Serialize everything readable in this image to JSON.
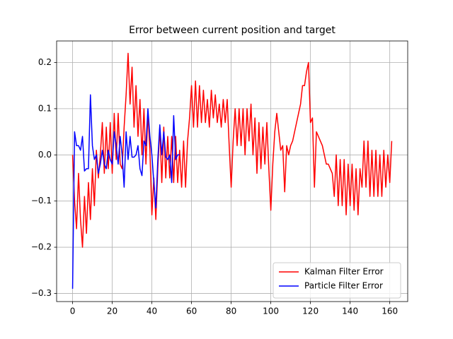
{
  "chart_data": {
    "type": "line",
    "title": "Error between current position and target",
    "xlim": [
      -8.05,
      169.05
    ],
    "ylim": [
      -0.3177,
      0.2467
    ],
    "xticks": [
      0,
      20,
      40,
      60,
      80,
      100,
      120,
      140,
      160
    ],
    "yticks": [
      {
        "value": -0.3,
        "label": "−0.3"
      },
      {
        "value": -0.2,
        "label": "−0.2"
      },
      {
        "value": -0.1,
        "label": "−0.1"
      },
      {
        "value": 0,
        "label": "0.0"
      },
      0.1,
      0.2
    ],
    "grid": true,
    "legend": "lower right",
    "series": [
      {
        "name": "Kalman Filter Error",
        "color": "#ff0000",
        "x": [
          0,
          1,
          2,
          3,
          4,
          5,
          6,
          7,
          8,
          9,
          10,
          11,
          12,
          13,
          14,
          15,
          16,
          17,
          18,
          19,
          20,
          21,
          22,
          23,
          24,
          25,
          26,
          27,
          28,
          29,
          30,
          31,
          32,
          33,
          34,
          35,
          36,
          37,
          38,
          39,
          40,
          41,
          42,
          43,
          44,
          45,
          46,
          47,
          48,
          49,
          50,
          51,
          52,
          53,
          54,
          55,
          56,
          57,
          58,
          59,
          60,
          61,
          62,
          63,
          64,
          65,
          66,
          67,
          68,
          69,
          70,
          71,
          72,
          73,
          74,
          75,
          76,
          77,
          78,
          79,
          80,
          81,
          82,
          83,
          84,
          85,
          86,
          87,
          88,
          89,
          90,
          91,
          92,
          93,
          94,
          95,
          96,
          97,
          98,
          99,
          100,
          101,
          102,
          103,
          104,
          105,
          106,
          107,
          108,
          109,
          110,
          111,
          112,
          113,
          114,
          115,
          116,
          117,
          118,
          119,
          120,
          121,
          122,
          123,
          124,
          125,
          126,
          127,
          128,
          129,
          130,
          131,
          132,
          133,
          134,
          135,
          136,
          137,
          138,
          139,
          140,
          141,
          142,
          143,
          144,
          145,
          146,
          147,
          148,
          149,
          150,
          151,
          152,
          153,
          154,
          155,
          156,
          157,
          158,
          159,
          160,
          161
        ],
        "values": [
          0.0,
          -0.1,
          -0.16,
          -0.04,
          -0.14,
          -0.2,
          -0.09,
          -0.17,
          -0.06,
          -0.14,
          -0.03,
          -0.11,
          0.01,
          -0.05,
          0.0,
          0.07,
          -0.04,
          0.06,
          -0.03,
          0.07,
          -0.04,
          0.09,
          -0.01,
          0.09,
          -0.02,
          -0.03,
          0.06,
          0.13,
          0.22,
          0.11,
          0.19,
          0.06,
          0.15,
          0.04,
          0.12,
          0.0,
          0.1,
          -0.02,
          0.09,
          0.01,
          -0.13,
          -0.05,
          -0.14,
          -0.03,
          0.06,
          -0.06,
          0.06,
          -0.05,
          0.04,
          -0.05,
          0.04,
          -0.06,
          0.04,
          -0.06,
          0.01,
          -0.07,
          0.03,
          -0.07,
          0.03,
          0.08,
          0.15,
          0.06,
          0.16,
          0.06,
          0.15,
          0.07,
          0.14,
          0.07,
          0.12,
          0.06,
          0.14,
          0.08,
          0.13,
          0.07,
          0.11,
          0.06,
          0.12,
          0.07,
          0.12,
          0.02,
          -0.07,
          0.03,
          0.1,
          0.02,
          0.1,
          0.02,
          0.1,
          0.0,
          0.1,
          0.03,
          0.11,
          0.0,
          0.08,
          -0.04,
          0.07,
          -0.03,
          0.06,
          -0.02,
          0.07,
          -0.03,
          -0.12,
          -0.02,
          0.05,
          0.09,
          0.05,
          0.01,
          0.02,
          -0.08,
          0.02,
          0.0,
          0.02,
          0.03,
          0.05,
          0.07,
          0.09,
          0.11,
          0.15,
          0.15,
          0.18,
          0.2,
          0.07,
          0.08,
          -0.07,
          0.05,
          0.04,
          0.03,
          0.02,
          0.0,
          -0.02,
          -0.02,
          -0.03,
          -0.04,
          -0.09,
          0.0,
          -0.11,
          -0.01,
          -0.11,
          -0.01,
          -0.13,
          -0.02,
          -0.11,
          -0.02,
          -0.12,
          -0.03,
          -0.13,
          -0.03,
          -0.07,
          0.03,
          -0.07,
          0.03,
          -0.09,
          0.01,
          -0.09,
          0.01,
          -0.09,
          0.0,
          -0.09,
          0.01,
          -0.07,
          0.0,
          -0.06,
          0.03
        ]
      },
      {
        "name": "Particle Filter Error",
        "color": "#0000ff",
        "x": [
          0,
          1,
          2,
          3,
          4,
          5,
          6,
          7,
          8,
          9,
          10,
          11,
          12,
          13,
          14,
          15,
          16,
          17,
          18,
          19,
          20,
          21,
          22,
          23,
          24,
          25,
          26,
          27,
          28,
          29,
          30,
          31,
          32,
          33,
          34,
          35,
          36,
          37,
          38,
          39,
          40,
          41,
          42,
          43,
          44,
          45,
          46,
          47,
          48,
          49,
          50,
          51,
          52,
          53,
          54
        ],
        "values": [
          -0.29,
          0.05,
          0.02,
          0.02,
          0.01,
          0.04,
          -0.035,
          -0.03,
          -0.03,
          0.13,
          0.02,
          -0.01,
          0.0,
          -0.04,
          -0.02,
          0.01,
          -0.02,
          -0.03,
          0.01,
          -0.01,
          -0.02,
          0.05,
          0.02,
          -0.02,
          0.04,
          0.0,
          -0.07,
          0.05,
          -0.01,
          0.04,
          -0.005,
          -0.005,
          0.0,
          0.02,
          -0.03,
          -0.045,
          0.03,
          0.02,
          0.1,
          0.04,
          0.0,
          -0.06,
          -0.115,
          -0.01,
          0.065,
          0.0,
          0.05,
          -0.005,
          -0.01,
          0.0,
          -0.06,
          0.085,
          -0.01,
          0.0,
          0.0
        ]
      }
    ]
  }
}
